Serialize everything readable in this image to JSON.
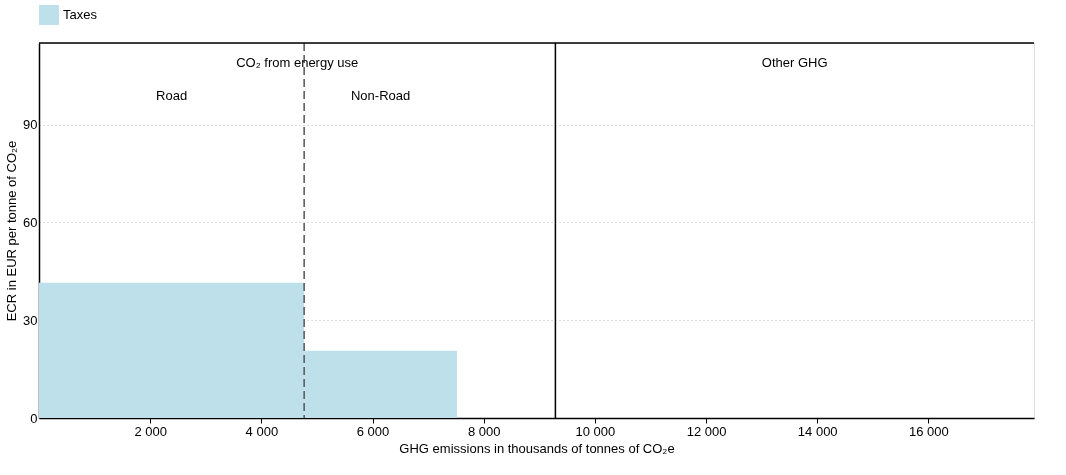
{
  "chart_data": {
    "type": "histogram",
    "bins": [
      0,
      4770,
      7520
    ],
    "series": [
      {
        "name": "Taxes",
        "color": "#bee0ea",
        "values": [
          41.5,
          20.6
        ]
      }
    ],
    "xlabel": "GHG emissions in thousands of tonnes of CO₂e",
    "ylabel": "ECR in EUR per tonne of CO₂e",
    "xlim": [
      0,
      17900
    ],
    "ylim": [
      0,
      115
    ],
    "xticks": [
      {
        "value": 2000,
        "label": "2 000"
      },
      {
        "value": 4000,
        "label": "4 000"
      },
      {
        "value": 6000,
        "label": "6 000"
      },
      {
        "value": 8000,
        "label": "8 000"
      },
      {
        "value": 10000,
        "label": "10 000"
      },
      {
        "value": 12000,
        "label": "12 000"
      },
      {
        "value": 14000,
        "label": "14 000"
      },
      {
        "value": 16000,
        "label": "16 000"
      }
    ],
    "yticks": [
      0,
      30,
      60,
      90
    ],
    "grid": "y",
    "legend": "top",
    "ref_lines": [
      {
        "axis": "x",
        "value": 4770,
        "color": "#555555",
        "line_style": "dashed"
      },
      {
        "axis": "x",
        "value": 9290,
        "color": "#000000",
        "line_style": "solid"
      }
    ],
    "annotations": [
      "CO₂ from energy use",
      "Road",
      "Non-Road",
      "Other GHG"
    ]
  }
}
